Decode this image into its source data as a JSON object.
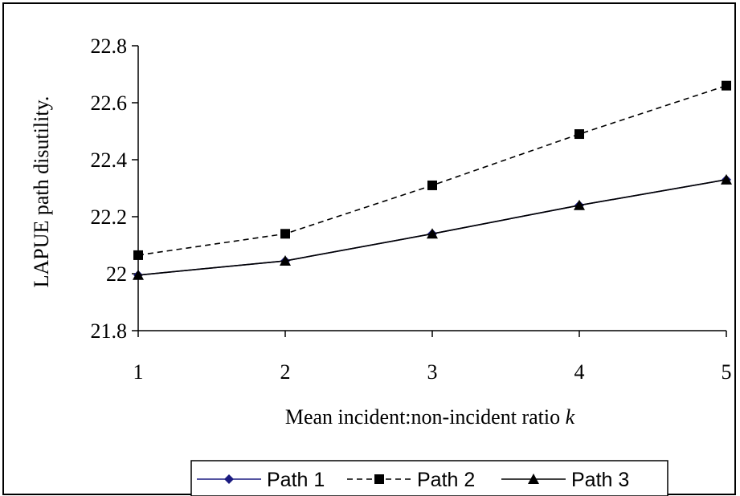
{
  "chart_data": {
    "type": "line",
    "x": [
      1,
      2,
      3,
      4,
      5
    ],
    "xlabel": "Mean incident:non-incident ratio",
    "xlabel_var": "k",
    "ylabel": "LAPUE path disutility.",
    "ylim": [
      21.8,
      22.8
    ],
    "yticks": [
      "21.8",
      "22",
      "22.2",
      "22.4",
      "22.6",
      "22.8"
    ],
    "xticks": [
      "1",
      "2",
      "3",
      "4",
      "5"
    ],
    "grid": false,
    "legend_position": "bottom",
    "series": [
      {
        "name": "Path 1",
        "values": [
          21.995,
          22.045,
          22.14,
          22.24,
          22.33
        ],
        "color": "#1a1a80",
        "dash": "solid",
        "marker": "diamond"
      },
      {
        "name": "Path 2",
        "values": [
          22.065,
          22.14,
          22.31,
          22.49,
          22.66
        ],
        "color": "#000000",
        "dash": "dashed",
        "marker": "square"
      },
      {
        "name": "Path 3",
        "values": [
          21.995,
          22.045,
          22.14,
          22.24,
          22.33
        ],
        "color": "#000000",
        "dash": "solid",
        "marker": "triangle"
      }
    ]
  }
}
